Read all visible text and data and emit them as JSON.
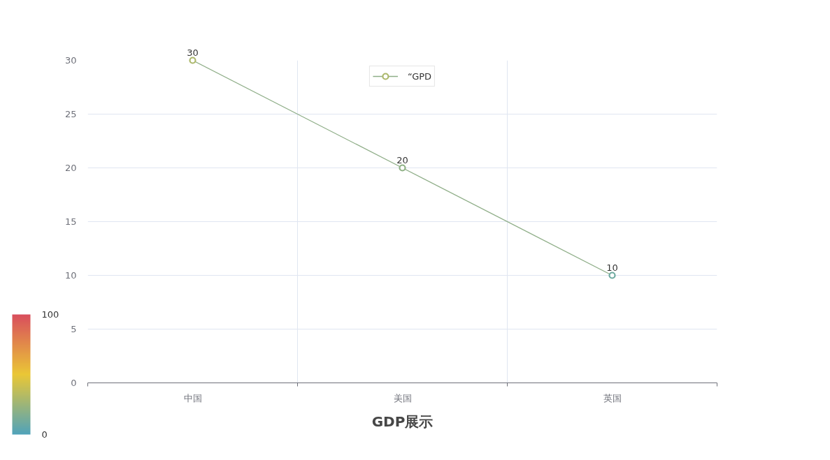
{
  "chart_data": {
    "type": "line",
    "title": "GDP展示",
    "categories": [
      "中国",
      "美国",
      "英国"
    ],
    "series": [
      {
        "name": "“GPD",
        "color": "#8fae88",
        "values": [
          30,
          20,
          10
        ]
      }
    ],
    "ylim": [
      0,
      30
    ],
    "yticks": [
      0,
      5,
      10,
      15,
      20,
      25,
      30
    ],
    "clim": [
      0,
      100
    ],
    "cticks": [
      0,
      100
    ],
    "grid": true,
    "legend": "top",
    "marker": "circle",
    "data_labels": true
  }
}
